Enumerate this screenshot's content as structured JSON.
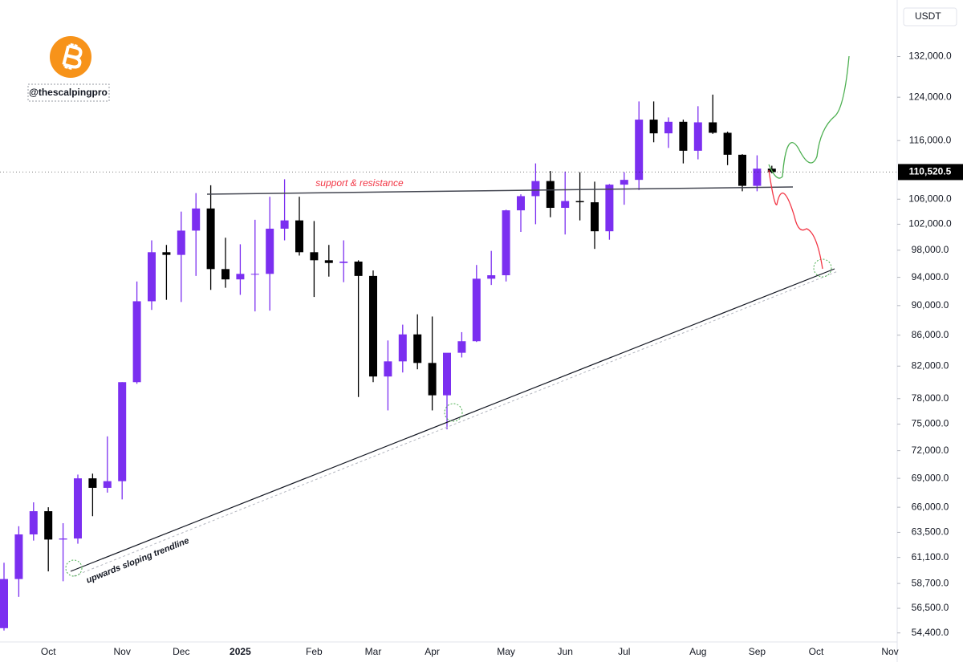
{
  "chart_data": {
    "type": "candlestick",
    "currency": "USDT",
    "handle": "@thescalpingpro",
    "annotations": [
      "support & resistance",
      "upwards sloping trendline"
    ],
    "y_scale": "log",
    "up_color": "#7b2ff0",
    "down_color": "#000000",
    "last_price": {
      "value": 110520.5,
      "label": "110,520.5"
    },
    "categories": [
      null,
      null,
      null,
      "Oct",
      null,
      null,
      null,
      null,
      "Nov",
      null,
      null,
      null,
      "Dec",
      null,
      null,
      null,
      "2025",
      null,
      null,
      null,
      null,
      "Feb",
      null,
      null,
      null,
      "Mar",
      null,
      null,
      null,
      "Apr",
      null,
      null,
      null,
      null,
      "May",
      null,
      null,
      null,
      "Jun",
      null,
      null,
      null,
      "Jul",
      null,
      null,
      null,
      null,
      "Aug",
      null,
      null,
      null,
      "Sep",
      null,
      null,
      null,
      "Oct",
      null,
      null,
      null,
      null,
      "Nov",
      null
    ],
    "open": [
      54800,
      59100,
      63300,
      65600,
      62800,
      62900,
      69000,
      68000,
      68700,
      80000,
      90600,
      97700,
      97300,
      101000,
      104500,
      95200,
      93700,
      94500,
      94500,
      101300,
      102600,
      97700,
      96500,
      96100,
      96300,
      94200,
      80700,
      82600,
      86100,
      82400,
      78400,
      83700,
      85200,
      93800,
      94300,
      104200,
      106500,
      109000,
      104600,
      105700,
      105500,
      100900,
      108400,
      109200,
      119800,
      117300,
      119400,
      114200,
      119300,
      117400,
      113500,
      108200,
      111100,
      null,
      null,
      null,
      null,
      null,
      null,
      null,
      null,
      null
    ],
    "high": [
      60600,
      64100,
      66500,
      66000,
      64400,
      69400,
      69500,
      73600,
      80000,
      93400,
      99500,
      98800,
      104000,
      107000,
      108300,
      99900,
      98900,
      102700,
      106400,
      109300,
      106400,
      102500,
      98800,
      99500,
      96500,
      95000,
      85300,
      87400,
      88800,
      88500,
      83600,
      86400,
      95800,
      97900,
      104300,
      106800,
      112000,
      110700,
      110600,
      110500,
      108900,
      108500,
      110500,
      123200,
      123200,
      120200,
      119800,
      122300,
      124500,
      117600,
      113600,
      113400,
      111600,
      null,
      null,
      null,
      null,
      null,
      null,
      null,
      null,
      null
    ],
    "low": [
      54600,
      57500,
      62700,
      59800,
      58900,
      62400,
      65100,
      67500,
      66800,
      79800,
      89400,
      90800,
      90500,
      94200,
      92200,
      92500,
      91500,
      89200,
      89300,
      99500,
      97200,
      91200,
      94100,
      93300,
      78200,
      80000,
      76600,
      81200,
      81600,
      76600,
      74400,
      83100,
      85100,
      92900,
      93400,
      100800,
      102000,
      103100,
      100400,
      102600,
      98200,
      99600,
      105100,
      107500,
      115700,
      114700,
      112000,
      112700,
      117200,
      111700,
      107300,
      107300,
      110300,
      null,
      null,
      null,
      null,
      null,
      null,
      null,
      null,
      null
    ],
    "close": [
      59100,
      63300,
      65600,
      62800,
      62900,
      69000,
      68000,
      68700,
      80000,
      90600,
      97700,
      97300,
      101000,
      104500,
      95200,
      93700,
      94500,
      94500,
      101300,
      102600,
      97700,
      96500,
      96100,
      96300,
      94200,
      80700,
      82600,
      86100,
      82400,
      78400,
      83700,
      85200,
      93800,
      94300,
      104200,
      106500,
      109000,
      104600,
      105700,
      105500,
      100900,
      108400,
      109200,
      119800,
      117300,
      119400,
      114200,
      119300,
      117400,
      113500,
      108200,
      111100,
      110520.5,
      null,
      null,
      null,
      null,
      null,
      null,
      null,
      null,
      null
    ],
    "ylim": [
      53650,
      144000
    ],
    "yticks": [
      {
        "value": 132000,
        "label": "132,000.0"
      },
      {
        "value": 124000,
        "label": "124,000.0"
      },
      {
        "value": 116000,
        "label": "116,000.0"
      },
      {
        "value": 106000,
        "label": "106,000.0"
      },
      {
        "value": 102000,
        "label": "102,000.0"
      },
      {
        "value": 98000,
        "label": "98,000.0"
      },
      {
        "value": 94000,
        "label": "94,000.0"
      },
      {
        "value": 90000,
        "label": "90,000.0"
      },
      {
        "value": 86000,
        "label": "86,000.0"
      },
      {
        "value": 82000,
        "label": "82,000.0"
      },
      {
        "value": 78000,
        "label": "78,000.0"
      },
      {
        "value": 75000,
        "label": "75,000.0"
      },
      {
        "value": 72000,
        "label": "72,000.0"
      },
      {
        "value": 69000,
        "label": "69,000.0"
      },
      {
        "value": 66000,
        "label": "66,000.0"
      },
      {
        "value": 63500,
        "label": "63,500.0"
      },
      {
        "value": 61100,
        "label": "61,100.0"
      },
      {
        "value": 58700,
        "label": "58,700.0"
      },
      {
        "value": 56500,
        "label": "56,500.0"
      },
      {
        "value": 54400,
        "label": "54,400.0"
      }
    ],
    "grid": false
  }
}
